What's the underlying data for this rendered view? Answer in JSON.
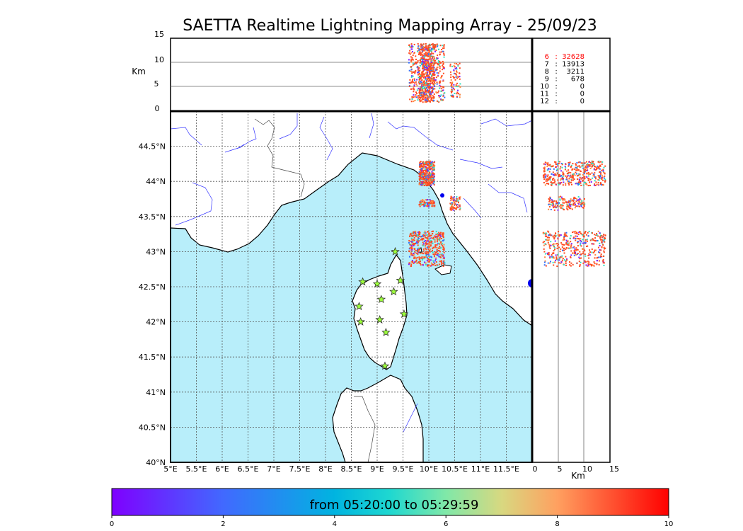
{
  "title": "SAETTA Realtime Lightning Mapping Array - 25/09/23",
  "km_label": "Km",
  "alt_ticks": [
    "15",
    "10",
    "5",
    "0"
  ],
  "lat_ticks": [
    "44.5°N",
    "44°N",
    "43.5°N",
    "43°N",
    "42.5°N",
    "42°N",
    "41.5°N",
    "41°N",
    "40.5°N",
    "40°N"
  ],
  "lon_ticks": [
    "5°E",
    "5.5°E",
    "6°E",
    "6.5°E",
    "7°E",
    "7.5°E",
    "8°E",
    "8.5°E",
    "9°E",
    "9.5°E",
    "10°E",
    "10.5°E",
    "11°E",
    "11.5°E"
  ],
  "side_ticks": [
    "0",
    "5",
    "10",
    "15"
  ],
  "counts": [
    {
      "label": "6",
      "sep": ":",
      "value": "32628",
      "color": "#ff0000"
    },
    {
      "label": "7",
      "sep": ":",
      "value": "13913",
      "color": "#000000"
    },
    {
      "label": "8",
      "sep": ":",
      "value": "3211",
      "color": "#000000"
    },
    {
      "label": "9",
      "sep": ":",
      "value": "678",
      "color": "#000000"
    },
    {
      "label": "10",
      "sep": ":",
      "value": "0",
      "color": "#000000"
    },
    {
      "label": "11",
      "sep": ":",
      "value": "0",
      "color": "#000000"
    },
    {
      "label": "12",
      "sep": ":",
      "value": "0",
      "color": "#000000"
    }
  ],
  "colorbar": {
    "label": "from 05:20:00 to 05:29:59",
    "ticks": [
      "0",
      "2",
      "4",
      "6",
      "8",
      "10"
    ]
  },
  "colors": {
    "sea": "#b8eefa",
    "rivers": "#3333ff",
    "frame": "#000000",
    "grid": "#555555"
  },
  "chart_data": {
    "type": "scatter",
    "map_extent": {
      "lon": [
        5,
        12
      ],
      "lat": [
        40,
        45
      ]
    },
    "altitude_range_km": [
      0,
      15
    ],
    "lightning_clusters": [
      {
        "lon_range": [
          9.8,
          10.1
        ],
        "lat_range": [
          43.95,
          44.3
        ],
        "altitude_km": [
          2,
          14
        ]
      },
      {
        "lon_range": [
          9.6,
          10.3
        ],
        "lat_range": [
          42.8,
          43.3
        ],
        "altitude_km": [
          2,
          14
        ]
      },
      {
        "lon_range": [
          9.8,
          10.1
        ],
        "lat_range": [
          43.65,
          43.75
        ],
        "altitude_km": [
          3,
          10
        ]
      },
      {
        "lon_range": [
          10.4,
          10.6
        ],
        "lat_range": [
          43.6,
          43.8
        ],
        "altitude_km": [
          3,
          10
        ]
      }
    ],
    "stations": [
      {
        "lon": 9.35,
        "lat": 43.0
      },
      {
        "lon": 8.72,
        "lat": 42.57
      },
      {
        "lon": 9.0,
        "lat": 42.54
      },
      {
        "lon": 9.45,
        "lat": 42.59
      },
      {
        "lon": 9.32,
        "lat": 42.43
      },
      {
        "lon": 9.08,
        "lat": 42.32
      },
      {
        "lon": 8.65,
        "lat": 42.22
      },
      {
        "lon": 8.68,
        "lat": 42.0
      },
      {
        "lon": 9.05,
        "lat": 42.03
      },
      {
        "lon": 9.52,
        "lat": 42.11
      },
      {
        "lon": 9.17,
        "lat": 41.85
      },
      {
        "lon": 9.15,
        "lat": 41.37
      }
    ]
  }
}
